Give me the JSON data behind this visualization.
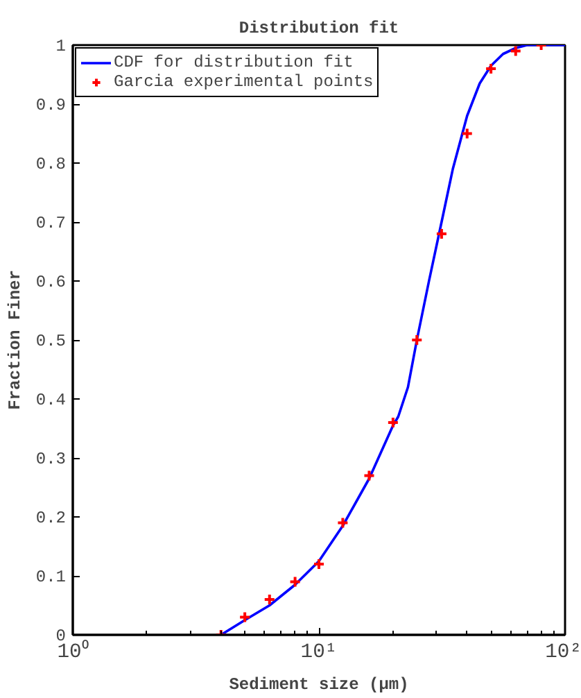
{
  "chart_data": {
    "type": "line",
    "title": "Distribution fit",
    "xlabel": "Sediment size (µm)",
    "ylabel": "Fraction Finer",
    "log": "x",
    "xlim": [
      1,
      100
    ],
    "xticks": [
      {
        "value": 1,
        "label": "10⁰"
      },
      {
        "value": 10,
        "label": "10¹"
      },
      {
        "value": 100,
        "label": "10²"
      }
    ],
    "ylim": [
      0,
      1
    ],
    "yticks": [
      0,
      0.1,
      0.2,
      0.3,
      0.4,
      0.5,
      0.6,
      0.7,
      0.8,
      0.9,
      1
    ],
    "grid": false,
    "legend": "top left",
    "series": [
      {
        "name": "CDF for distribution fit",
        "color": "#0000ff",
        "line_style": "solid",
        "x": [
          4,
          5,
          6.3,
          8,
          10,
          12.5,
          16,
          20,
          21,
          23,
          25,
          28,
          31.5,
          35,
          40,
          45,
          50,
          56,
          63,
          70,
          80,
          100
        ],
        "values": [
          0,
          0.025,
          0.05,
          0.085,
          0.125,
          0.185,
          0.265,
          0.355,
          0.37,
          0.42,
          0.5,
          0.6,
          0.7,
          0.79,
          0.88,
          0.935,
          0.965,
          0.985,
          0.995,
          1.0,
          1.0,
          1.0
        ]
      },
      {
        "name": "Garcia experimental points",
        "type": "scatter",
        "marker": "cross",
        "color": "#ff0000",
        "x": [
          4,
          5,
          6.3,
          8,
          10,
          12.5,
          16,
          20,
          25,
          31.5,
          40,
          50,
          63,
          80
        ],
        "values": [
          0,
          0.03,
          0.06,
          0.09,
          0.12,
          0.19,
          0.27,
          0.36,
          0.5,
          0.68,
          0.85,
          0.96,
          0.99,
          1.0
        ]
      }
    ]
  }
}
